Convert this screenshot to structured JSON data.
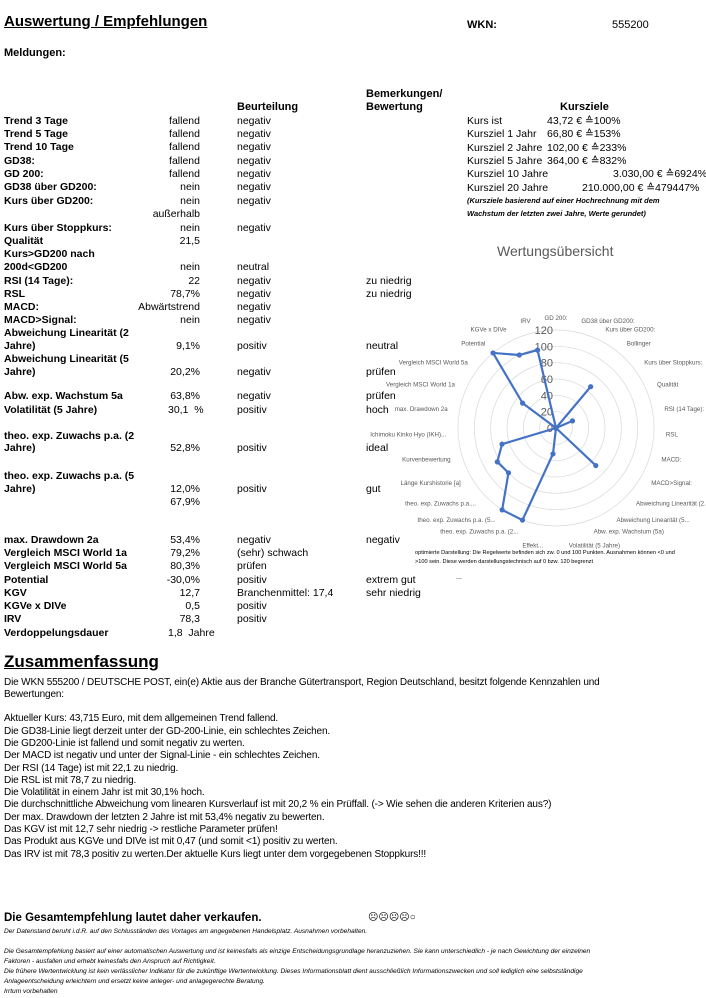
{
  "header": {
    "title": "Auswertung / Empfehlungen",
    "wkn_label": "WKN:",
    "wkn_value": "555200",
    "messages_label": "Meldungen:"
  },
  "table": {
    "col_rating": "Beurteilung",
    "col_remarks_1": "Bemerkungen/",
    "col_remarks_2": "Bewertung",
    "rows": [
      {
        "label": "Trend 3 Tage",
        "value": "fallend",
        "rating": "negativ",
        "remark": ""
      },
      {
        "label": "Trend 5 Tage",
        "value": "fallend",
        "rating": "negativ",
        "remark": ""
      },
      {
        "label": "Trend 10 Tage",
        "value": "fallend",
        "rating": "negativ",
        "remark": ""
      },
      {
        "label": "GD38:",
        "value": "fallend",
        "rating": "negativ",
        "remark": ""
      },
      {
        "label": "GD 200:",
        "value": "fallend",
        "rating": "negativ",
        "remark": ""
      },
      {
        "label": "GD38 über GD200:",
        "value": "nein",
        "rating": "negativ",
        "remark": ""
      },
      {
        "label": "Kurs über GD200:",
        "value": "nein",
        "rating": "negativ",
        "remark": ""
      },
      {
        "label": "",
        "value": "außerhalb",
        "rating": "",
        "remark": ""
      },
      {
        "label": "Kurs über Stoppkurs:",
        "value": "nein",
        "rating": "negativ",
        "remark": ""
      },
      {
        "label": "Qualität",
        "value": "21,5",
        "rating": "",
        "remark": ""
      },
      {
        "label": "Kurs>GD200 nach",
        "value": "",
        "rating": "",
        "remark": ""
      },
      {
        "label": "200d<GD200",
        "value": "nein",
        "rating": "neutral",
        "remark": ""
      },
      {
        "label": "RSI (14 Tage):",
        "value": "22",
        "rating": "negativ",
        "remark": "zu niedrig"
      },
      {
        "label": "RSL",
        "value": "78,7%",
        "rating": "negativ",
        "remark": "zu niedrig"
      },
      {
        "label": "MACD:",
        "value": "Abwärtstrend",
        "rating": "negativ",
        "remark": ""
      },
      {
        "label": "MACD>Signal:",
        "value": "nein",
        "rating": "negativ",
        "remark": ""
      },
      {
        "label": "Abweichung Linearität (2",
        "value": "",
        "rating": "",
        "remark": ""
      },
      {
        "label": "Jahre)",
        "value": "9,1%",
        "rating": "positiv",
        "remark": "neutral"
      },
      {
        "label": "Abweichung Linearität (5",
        "value": "",
        "rating": "",
        "remark": ""
      },
      {
        "label": "Jahre)",
        "value": "20,2%",
        "rating": "negativ",
        "remark": "prüfen"
      },
      {
        "label": "Abw. exp. Wachstum 5a",
        "value": "63,8%",
        "rating": "negativ",
        "remark": "prüfen"
      },
      {
        "label": "Volatilität (5 Jahre)",
        "value": "30,1  %",
        "rating": "positiv",
        "remark": "hoch"
      },
      {
        "label": "theo. exp. Zuwachs p.a. (2",
        "value": "",
        "rating": "",
        "remark": ""
      },
      {
        "label": "Jahre)",
        "value": "52,8%",
        "rating": "positiv",
        "remark": "ideal"
      },
      {
        "label": "theo. exp. Zuwachs p.a. (5",
        "value": "",
        "rating": "",
        "remark": ""
      },
      {
        "label": "Jahre)",
        "value": "12,0%",
        "rating": "positiv",
        "remark": "gut"
      },
      {
        "label": "",
        "value": "67,9%",
        "rating": "",
        "remark": ""
      },
      {
        "label": "max. Drawdown 2a",
        "value": "53,4%",
        "rating": "negativ",
        "remark": "negativ"
      },
      {
        "label": "Vergleich MSCI World 1a",
        "value": "79,2%",
        "rating": "(sehr) schwach",
        "remark": ""
      },
      {
        "label": "Vergleich MSCI World 5a",
        "value": "80,3%",
        "rating": "prüfen",
        "remark": ""
      },
      {
        "label": "Potential",
        "value": "-30,0%",
        "rating": "positiv",
        "remark": "extrem gut"
      },
      {
        "label": "KGV",
        "value": "12,7",
        "rating": "Branchenmittel: 17,4",
        "remark": "sehr niedrig"
      },
      {
        "label": "KGVe x DIVe",
        "value": "0,5",
        "rating": "positiv",
        "remark": ""
      },
      {
        "label": "IRV",
        "value": "78,3",
        "rating": "positiv",
        "remark": ""
      },
      {
        "label": "Verdoppelungsdauer",
        "value": "1,8  Jahre",
        "rating": "",
        "remark": ""
      }
    ]
  },
  "targets": {
    "title": "Kursziele",
    "rows": [
      {
        "label": "Kurs ist",
        "value": "43,72 € ≙100%"
      },
      {
        "label": "Kursziel 1 Jahr",
        "value": "66,80 € ≙153%"
      },
      {
        "label": "Kursziel 2 Jahre",
        "value": "102,00 € ≙233%"
      },
      {
        "label": "Kursziel 5 Jahre",
        "value": "364,00 € ≙832%"
      },
      {
        "label": "Kursziel 10 Jahre",
        "value": "3.030,00 € ≙6924%"
      },
      {
        "label": "Kursziel 20 Jahre",
        "value": "210.000,00 € ≙479447%"
      }
    ],
    "note_1": "(Kursziele basierend auf einer Hochrechnung mit dem",
    "note_2": "Wachstum der letzten zwei Jahre, Werte gerundet)"
  },
  "chart_data": {
    "type": "radar",
    "title": "Wertungsübersicht",
    "rlim": [
      0,
      120
    ],
    "ticks": [
      "0",
      "20",
      "40",
      "60",
      "80",
      "100",
      "120"
    ],
    "grid": true,
    "color": "#4472C4",
    "categories": [
      "GD 200:",
      "GD38 über GD200:",
      "Kurs über GD200:",
      "Bollinger",
      "Kurs über Stoppkurs:",
      "Qualität",
      "RSI (14 Tage):",
      "RSL",
      "MACD:",
      "MACD>Signal:",
      "Abweichung Linearität (2...",
      "Abweichung Linearität (5...",
      "Abw. exp. Wachstum (5a)",
      "Volatilität (5 Jahre)",
      "Effekt...",
      "theo. exp. Zuwachs p.a. (2...",
      "theo. exp. Zuwachs p.a. (5...",
      "theo. exp. Zuwachs p.a....",
      "Länge Kurshistorie [a]",
      "Kurvenbewertung",
      "Ichimoku Kinko Hyo (IKH)...",
      "max. Drawdown 2a",
      "Vergleich MSCI World 1a",
      "Vergleich MSCI World 5a",
      "Potential",
      "KGVe x DIVe",
      "IRV"
    ],
    "values": [
      0,
      0,
      0,
      66,
      0,
      22,
      0,
      0,
      0,
      0,
      67,
      0,
      0,
      0,
      32,
      120,
      120,
      80,
      83,
      69,
      0,
      0,
      0,
      51,
      120,
      100,
      98
    ],
    "footnote_1": "optimierte Darstellung: Die Regelwerte befinden sich zw. 0 und 100 Punkten. Ausnahmen können <0 und",
    "footnote_2": ">100 sein. Diese werden darstellungstechnisch auf 0 bzw. 120 begrenzt"
  },
  "ellipsis": "...",
  "summary": {
    "title": "Zusammenfassung",
    "lines": [
      "Die WKN 555200 / DEUTSCHE POST, ein(e) Aktie aus der Branche Gütertransport, Region Deutschland, besitzt folgende Kennzahlen und",
      "Bewertungen:",
      "Aktueller Kurs: 43,715 Euro, mit dem allgemeinen Trend fallend.",
      "Die GD38-Linie liegt derzeit unter der GD-200-Linie, ein schlechtes Zeichen.",
      "Die GD200-Linie ist fallend und somit negativ zu werten.",
      "Der MACD ist negativ und unter der Signal-Linie - ein schlechtes Zeichen.",
      "Der RSI (14 Tage) ist mit 22,1 zu niedrig.",
      "Die RSL ist mit 78,7 zu niedrig.",
      "Die Volatilität in einem Jahr ist mit 30,1% hoch.",
      "Die durchschnittliche Abweichung vom linearen Kursverlauf ist mit 20,2 % ein Prüffall. (-> Wie sehen die anderen Kriterien aus?)",
      "Der max. Drawdown der letzten 2 Jahre ist mit  53,4% negativ zu bewerten.",
      "Das KGV ist mit 12,7 sehr niedrig -> restliche Parameter prüfen!",
      "Das Produkt aus KGVe und DIVe ist mit 0,47 (und somit <1) positiv zu werten.",
      "Das IRV ist mit 78,3 positiv zu werten.Der aktuelle Kurs liegt unter dem vorgegebenen Stoppkurs!!!"
    ]
  },
  "recommendation": {
    "text": "Die Gesamtempfehlung lautet daher verkaufen.",
    "rating_symbols": "☹☹☹☹○",
    "rating_score": "0 of 5"
  },
  "disclaimer": [
    "Der Datenstand beruht i.d.R. auf den Schlusständen des Vortages am angegebenen Handelsplatz. Ausnahmen vorbehalten.",
    "Die Gesamtempfehlung basiert auf einer automatischen Auswertung und ist keinesfalls als einzige Entscheidungsgrundlage heranzuziehen. Sie kann unterschiedlich - je nach Gewichtung der einzelnen",
    "Faktoren - ausfallen und erhebt keinesfalls den Anspruch auf Richtigkeit.",
    "Die frühere Wertentwicklung ist kein verlässlicher Indikator für die zukünftige Wertentwicklung. Dieses Informationsblatt dient ausschließlich Informationszwecken und soll lediglich eine selbstständige",
    "Anlageentscheidung erleichtern und ersetzt keine anleger- und anlagegerechte Beratung.",
    "Irrtum vorbehalten"
  ]
}
